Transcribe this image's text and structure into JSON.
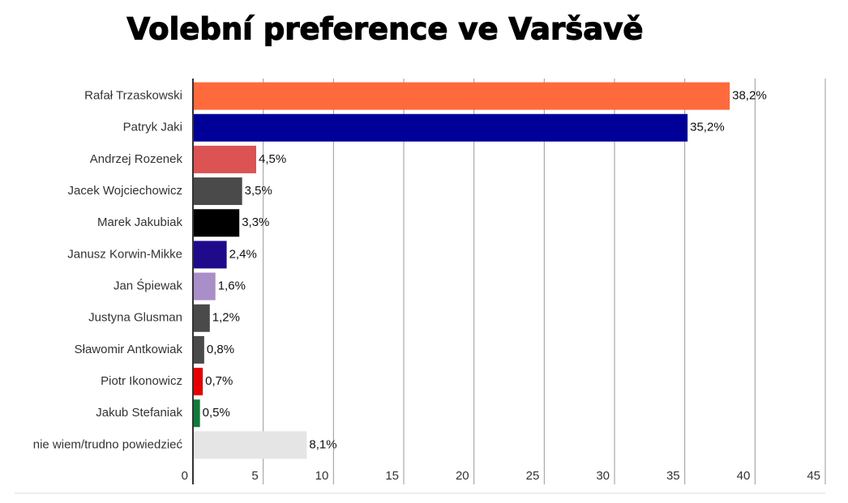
{
  "chart_data": {
    "type": "barh",
    "title": "Volební preference ve Varšavě",
    "categories": [
      "Rafał Trzaskowski",
      "Patryk Jaki",
      "Andrzej Rozenek",
      "Jacek Wojciechowicz",
      "Marek Jakubiak",
      "Janusz Korwin-Mikke",
      "Jan Śpiewak",
      "Justyna Glusman",
      "Sławomir Antkowiak",
      "Piotr Ikonowicz",
      "Jakub Stefaniak",
      "nie wiem/trudno powiedzieć"
    ],
    "values": [
      38.2,
      35.2,
      4.5,
      3.5,
      3.3,
      2.4,
      1.6,
      1.2,
      0.8,
      0.7,
      0.5,
      8.1
    ],
    "value_labels": [
      "38,2%",
      "35,2%",
      "4,5%",
      "3,5%",
      "3,3%",
      "2,4%",
      "1,6%",
      "1,2%",
      "0,8%",
      "0,7%",
      "0,5%",
      "8,1%"
    ],
    "colors": [
      "#ff6a3d",
      "#000099",
      "#dc5353",
      "#4a4a4a",
      "#000000",
      "#1f0a8c",
      "#a98ec7",
      "#4a4a4a",
      "#4a4a4a",
      "#e60000",
      "#107a3a",
      "#e5e5e5"
    ],
    "xlim": [
      0,
      45
    ],
    "xticks": [
      0,
      5,
      10,
      15,
      20,
      25,
      30,
      35,
      40,
      45
    ],
    "grid": true
  }
}
